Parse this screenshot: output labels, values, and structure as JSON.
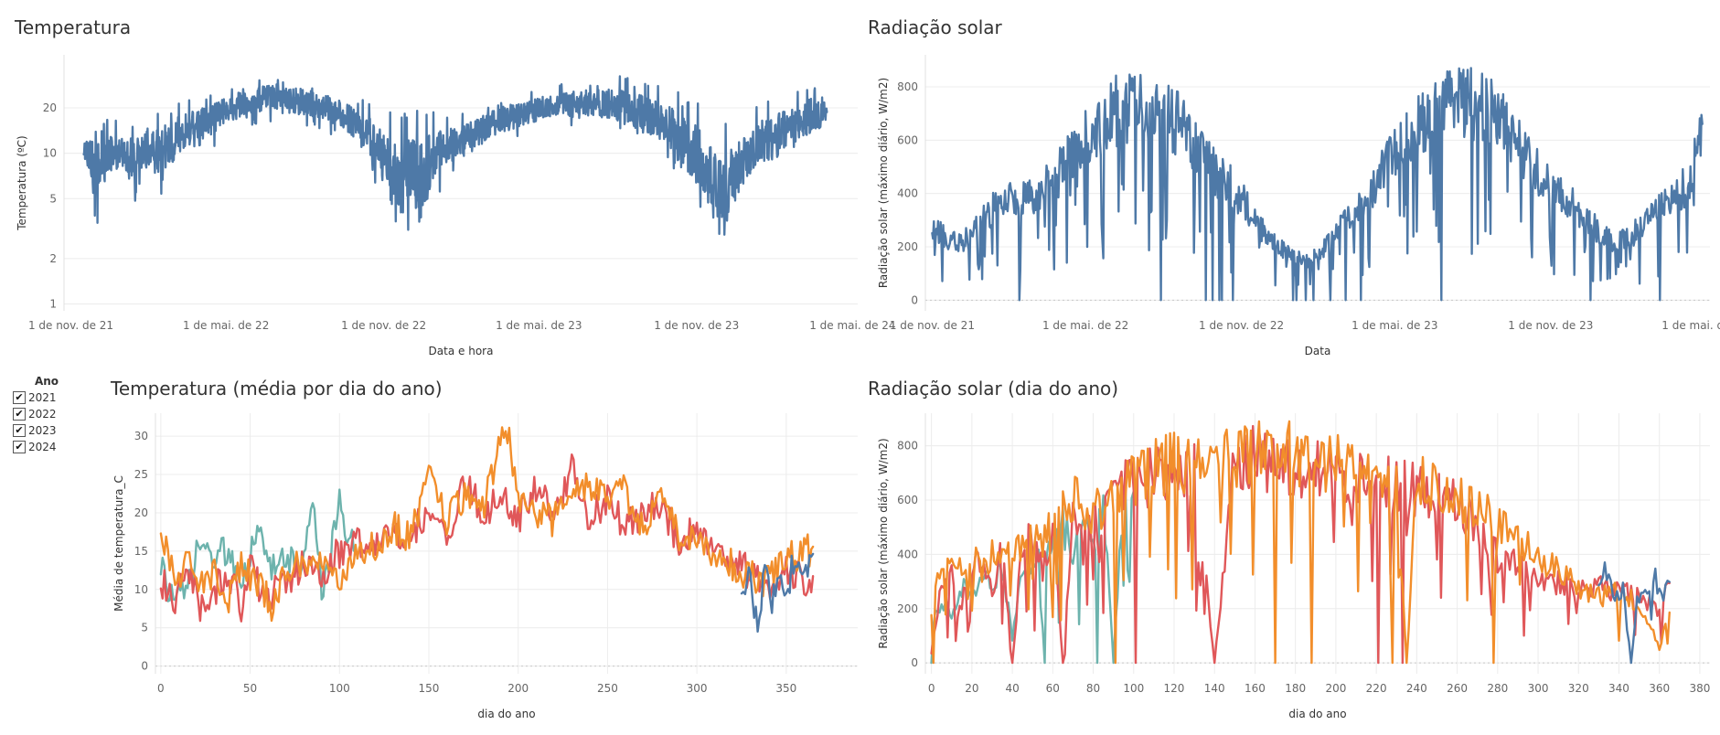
{
  "panels": {
    "temp_title": "Temperatura",
    "rad_title": "Radiação solar",
    "temp_doy_title": "Temperatura (média por dia do ano)",
    "rad_doy_title": "Radiação solar (dia do ano)"
  },
  "legend": {
    "title": "Ano",
    "items": [
      {
        "label": "2021",
        "checked": true,
        "color": "#6db3ad"
      },
      {
        "label": "2022",
        "checked": true,
        "color": "#e05759"
      },
      {
        "label": "2023",
        "checked": true,
        "color": "#f28e2b"
      },
      {
        "label": "2024",
        "checked": true,
        "color": "#4e79a7"
      }
    ],
    "check_glyph": "✔"
  },
  "colors": {
    "line_blue": "#4e79a7",
    "grid": "#ececec",
    "text": "#333333"
  },
  "chart_data": [
    {
      "id": "temp",
      "type": "line",
      "title": "Temperatura",
      "xlabel": "Data e hora",
      "ylabel": "Temperatura (ºC)",
      "yscale": "log",
      "ylim": [
        0.9,
        45
      ],
      "xlim": [
        "2021-10-24",
        "2024-05-07"
      ],
      "x_ticks": [
        {
          "label": "1 de nov. de 21",
          "date": "2021-11-01"
        },
        {
          "label": "1 de mai. de 22",
          "date": "2022-05-01"
        },
        {
          "label": "1 de nov. de 22",
          "date": "2022-11-01"
        },
        {
          "label": "1 de mai. de 23",
          "date": "2023-05-01"
        },
        {
          "label": "1 de nov. de 23",
          "date": "2023-11-01"
        },
        {
          "label": "1 de mai. de 24",
          "date": "2024-05-01"
        }
      ],
      "y_ticks": [
        1,
        2,
        5,
        10,
        20
      ],
      "series": [
        {
          "color": "#4e79a7",
          "x": [
            "2021-11-16",
            "2021-12-01",
            "2021-12-16",
            "2022-01-01",
            "2022-01-16",
            "2022-02-01",
            "2022-02-16",
            "2022-03-01",
            "2022-03-16",
            "2022-04-01",
            "2022-04-16",
            "2022-05-01",
            "2022-05-16",
            "2022-06-01",
            "2022-06-16",
            "2022-07-01",
            "2022-07-16",
            "2022-08-01",
            "2022-08-16",
            "2022-09-01",
            "2022-09-16",
            "2022-10-01",
            "2022-10-16",
            "2022-11-01",
            "2022-11-16",
            "2022-12-01",
            "2022-12-16",
            "2023-01-01",
            "2023-01-16",
            "2023-02-01",
            "2023-02-16",
            "2023-03-01",
            "2023-03-16",
            "2023-04-01",
            "2023-04-16",
            "2023-05-01",
            "2023-05-16",
            "2023-06-01",
            "2023-06-16",
            "2023-07-01",
            "2023-07-16",
            "2023-08-01",
            "2023-08-16",
            "2023-09-01",
            "2023-09-16",
            "2023-10-01",
            "2023-10-16",
            "2023-11-01",
            "2023-11-16",
            "2023-12-01",
            "2023-12-16",
            "2024-01-01",
            "2024-01-16",
            "2024-02-01",
            "2024-02-16",
            "2024-03-01",
            "2024-03-16",
            "2024-04-01"
          ],
          "max": [
            15,
            16,
            17,
            16,
            18,
            19,
            20,
            22,
            24,
            25,
            26,
            28,
            30,
            32,
            33,
            34,
            32,
            31,
            30,
            28,
            26,
            24,
            22,
            20,
            19,
            18,
            20,
            22,
            20,
            19,
            20,
            22,
            24,
            25,
            26,
            27,
            28,
            29,
            30,
            31,
            32,
            33,
            32,
            31,
            30,
            28,
            24,
            22,
            18,
            16,
            17,
            18,
            22,
            24,
            25,
            26,
            30,
            28
          ],
          "min": [
            7,
            3,
            5,
            6,
            3,
            6,
            5,
            6,
            7,
            8,
            10,
            12,
            13,
            14,
            15,
            15,
            14,
            14,
            13,
            12,
            11,
            9,
            7,
            4,
            1.5,
            3,
            1.6,
            5,
            6,
            7,
            8,
            9,
            10,
            11,
            12,
            13,
            14,
            14,
            13,
            14,
            13,
            12,
            11,
            10,
            9,
            7,
            5,
            4,
            2.5,
            1.3,
            3,
            5,
            6,
            6,
            8,
            9,
            10,
            11
          ]
        }
      ]
    },
    {
      "id": "rad",
      "type": "line",
      "title": "Radiação solar",
      "xlabel": "Data",
      "ylabel": "Radiação solar (máximo diário, W/m2)",
      "ylim": [
        -40,
        920
      ],
      "xlim": [
        "2021-10-24",
        "2024-05-07"
      ],
      "x_ticks": [
        {
          "label": "1 de nov. de 21",
          "date": "2021-11-01"
        },
        {
          "label": "1 de mai. de 22",
          "date": "2022-05-01"
        },
        {
          "label": "1 de nov. de 22",
          "date": "2022-11-01"
        },
        {
          "label": "1 de mai. de 23",
          "date": "2023-05-01"
        },
        {
          "label": "1 de nov. de 23",
          "date": "2023-11-01"
        },
        {
          "label": "1 de mai. de 24",
          "date": "2024-05-01"
        }
      ],
      "y_ticks": [
        0,
        200,
        400,
        600,
        800
      ],
      "series": [
        {
          "color": "#4e79a7",
          "x": [
            "2021-11-01",
            "2021-11-16",
            "2021-12-01",
            "2021-12-16",
            "2022-01-01",
            "2022-01-16",
            "2022-02-01",
            "2022-02-16",
            "2022-03-01",
            "2022-03-16",
            "2022-04-01",
            "2022-04-16",
            "2022-05-01",
            "2022-05-16",
            "2022-06-01",
            "2022-06-16",
            "2022-07-01",
            "2022-07-16",
            "2022-08-01",
            "2022-08-16",
            "2022-09-01",
            "2022-09-16",
            "2022-10-01",
            "2022-10-16",
            "2022-11-01",
            "2022-11-16",
            "2022-12-01",
            "2022-12-16",
            "2023-01-01",
            "2023-01-16",
            "2023-02-01",
            "2023-02-16",
            "2023-03-01",
            "2023-03-16",
            "2023-04-01",
            "2023-04-16",
            "2023-05-01",
            "2023-05-16",
            "2023-06-01",
            "2023-06-16",
            "2023-07-01",
            "2023-07-16",
            "2023-08-01",
            "2023-08-16",
            "2023-09-01",
            "2023-09-16",
            "2023-10-01",
            "2023-10-16",
            "2023-11-01",
            "2023-11-16",
            "2023-12-01",
            "2023-12-16",
            "2024-01-01",
            "2024-01-16",
            "2024-02-01",
            "2024-02-16",
            "2024-03-01",
            "2024-03-16",
            "2024-04-01",
            "2024-04-16",
            "2024-04-28"
          ],
          "y": [
            300,
            260,
            240,
            250,
            330,
            380,
            400,
            420,
            430,
            470,
            520,
            600,
            650,
            700,
            760,
            780,
            790,
            780,
            760,
            720,
            650,
            590,
            520,
            470,
            420,
            320,
            270,
            220,
            180,
            160,
            190,
            250,
            300,
            350,
            430,
            520,
            600,
            650,
            720,
            760,
            800,
            810,
            790,
            770,
            730,
            680,
            600,
            520,
            460,
            410,
            380,
            320,
            260,
            230,
            250,
            300,
            350,
            380,
            420,
            520,
            700
          ]
        }
      ]
    },
    {
      "id": "temp_doy",
      "type": "line",
      "title": "Temperatura (média por dia do ano)",
      "xlabel": "dia do ano",
      "ylabel": "Média de temperatura_C",
      "xlim": [
        -3,
        390
      ],
      "ylim": [
        -1,
        33
      ],
      "x_ticks": [
        0,
        50,
        100,
        150,
        200,
        250,
        300,
        350
      ],
      "y_ticks": [
        0,
        5,
        10,
        15,
        20,
        25,
        30
      ],
      "series": [
        {
          "name": "2021",
          "color": "#6db3ad",
          "x": [
            0,
            8,
            15,
            22,
            30,
            38,
            45,
            55,
            62,
            70,
            78,
            85,
            90,
            95,
            100,
            105,
            110
          ],
          "y": [
            13,
            8,
            10,
            16,
            14,
            15,
            12,
            17,
            13,
            15,
            12,
            22,
            10,
            14,
            21,
            17,
            15
          ]
        },
        {
          "name": "2022",
          "color": "#e05759",
          "x": [
            0,
            8,
            15,
            22,
            30,
            38,
            45,
            50,
            55,
            60,
            70,
            80,
            90,
            100,
            110,
            120,
            130,
            140,
            150,
            160,
            170,
            180,
            190,
            200,
            210,
            220,
            230,
            240,
            250,
            260,
            270,
            280,
            290,
            300,
            310,
            320,
            330,
            340,
            350,
            360,
            365
          ],
          "y": [
            11,
            9,
            12,
            8,
            10,
            12,
            8,
            14,
            10,
            9,
            11,
            13,
            12,
            15,
            16,
            15,
            17,
            18,
            19,
            17,
            24,
            20,
            22,
            19,
            23,
            20,
            26,
            19,
            22,
            18,
            20,
            21,
            16,
            18,
            15,
            14,
            12,
            10,
            13,
            11,
            11
          ]
        },
        {
          "name": "2023",
          "color": "#f28e2b",
          "x": [
            0,
            8,
            15,
            22,
            30,
            38,
            45,
            55,
            62,
            70,
            80,
            90,
            100,
            110,
            120,
            130,
            140,
            150,
            160,
            170,
            180,
            190,
            195,
            200,
            210,
            220,
            230,
            240,
            250,
            260,
            270,
            280,
            290,
            300,
            310,
            320,
            330,
            340,
            350,
            360,
            365
          ],
          "y": [
            18,
            11,
            14,
            10,
            12,
            9,
            13,
            11,
            8,
            12,
            14,
            15,
            12,
            14,
            16,
            18,
            17,
            25,
            19,
            22,
            20,
            29,
            31,
            21,
            20,
            19,
            22,
            24,
            21,
            23,
            18,
            22,
            17,
            16,
            15,
            13,
            12,
            11,
            14,
            15,
            15
          ]
        },
        {
          "name": "2024",
          "color": "#4e79a7",
          "x": [
            325,
            330,
            334,
            338,
            342,
            346,
            350,
            355,
            360,
            365
          ],
          "y": [
            10,
            11,
            5,
            12,
            9,
            13,
            10,
            14,
            12,
            14
          ]
        }
      ]
    },
    {
      "id": "rad_doy",
      "type": "line",
      "title": "Radiação solar (dia do ano)",
      "xlabel": "dia do ano",
      "ylabel": "Radiação solar (máximo diário, W/m2)",
      "xlim": [
        -3,
        385
      ],
      "ylim": [
        -40,
        920
      ],
      "x_ticks": [
        0,
        20,
        40,
        60,
        80,
        100,
        120,
        140,
        160,
        180,
        200,
        220,
        240,
        260,
        280,
        300,
        320,
        340,
        360,
        380
      ],
      "y_ticks": [
        0,
        200,
        400,
        600,
        800
      ],
      "series": [
        {
          "name": "2021",
          "color": "#6db3ad",
          "x": [
            0,
            5,
            10,
            15,
            20,
            25,
            30,
            35,
            40,
            45,
            50,
            55,
            60,
            65,
            70,
            75,
            80,
            85,
            90,
            95,
            100
          ],
          "y": [
            150,
            250,
            200,
            300,
            250,
            350,
            320,
            380,
            100,
            400,
            420,
            380,
            500,
            550,
            450,
            600,
            500,
            650,
            0,
            700,
            680
          ]
        },
        {
          "name": "2022",
          "color": "#e05759",
          "x": [
            0,
            5,
            10,
            15,
            20,
            25,
            30,
            35,
            40,
            45,
            50,
            55,
            60,
            65,
            70,
            80,
            90,
            100,
            110,
            120,
            130,
            140,
            150,
            160,
            170,
            180,
            190,
            200,
            210,
            220,
            230,
            240,
            250,
            260,
            270,
            280,
            290,
            300,
            310,
            320,
            330,
            340,
            350,
            360,
            365
          ],
          "y": [
            40,
            320,
            340,
            250,
            380,
            420,
            300,
            450,
            0,
            480,
            500,
            350,
            550,
            0,
            600,
            520,
            700,
            720,
            740,
            760,
            780,
            0,
            800,
            820,
            790,
            780,
            760,
            750,
            740,
            720,
            700,
            680,
            650,
            620,
            560,
            420,
            380,
            340,
            320,
            300,
            300,
            280,
            260,
            200,
            320
          ]
        },
        {
          "name": "2023",
          "color": "#f28e2b",
          "x": [
            0,
            5,
            10,
            15,
            20,
            25,
            30,
            35,
            40,
            45,
            50,
            55,
            60,
            65,
            70,
            80,
            90,
            100,
            110,
            120,
            130,
            140,
            150,
            160,
            170,
            180,
            190,
            200,
            210,
            220,
            230,
            235,
            240,
            250,
            260,
            270,
            280,
            290,
            300,
            310,
            320,
            330,
            340,
            350,
            360,
            365
          ],
          "y": [
            200,
            380,
            400,
            350,
            420,
            380,
            440,
            400,
            420,
            460,
            500,
            480,
            550,
            600,
            650,
            600,
            680,
            720,
            780,
            800,
            790,
            820,
            800,
            850,
            870,
            830,
            800,
            780,
            760,
            740,
            700,
            0,
            720,
            680,
            650,
            600,
            560,
            480,
            420,
            360,
            300,
            260,
            280,
            240,
            60,
            200
          ]
        },
        {
          "name": "2024",
          "color": "#4e79a7",
          "x": [
            330,
            334,
            338,
            342,
            346,
            350,
            354,
            358,
            362,
            365
          ],
          "y": [
            320,
            380,
            260,
            300,
            0,
            320,
            250,
            340,
            280,
            330
          ]
        }
      ]
    }
  ]
}
